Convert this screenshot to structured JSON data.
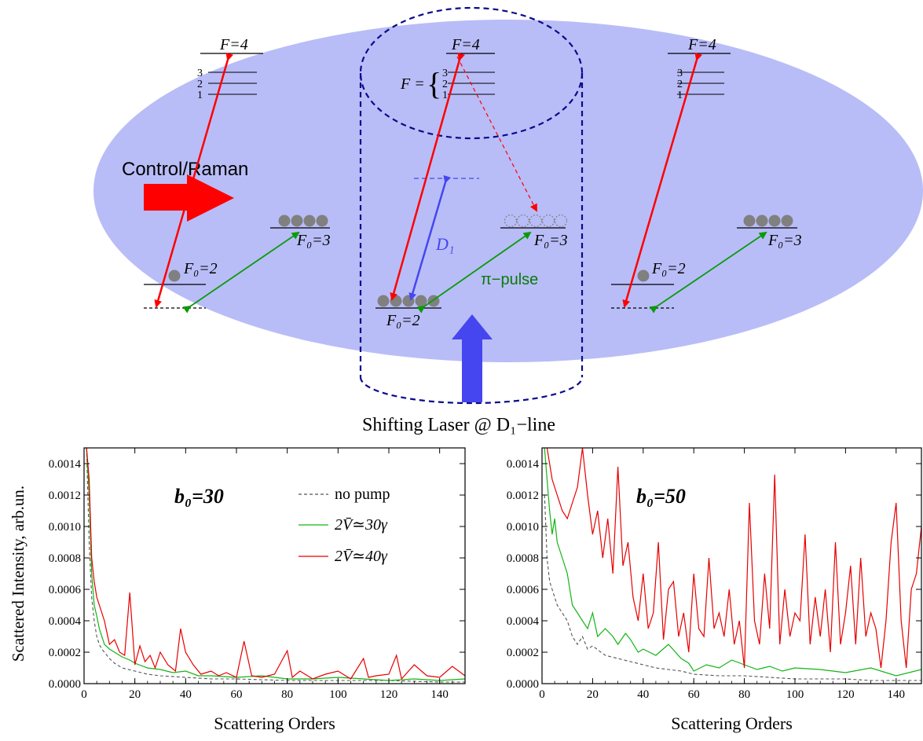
{
  "diagram": {
    "control_label": "Control/Raman",
    "shifting_label": "Shifting Laser @ D₁−line",
    "d1_label": "D₁",
    "pi_pulse_label": "π−pulse",
    "f_brace_label": "F =",
    "level_F4": "F=4",
    "level_F0_2": "F₀=2",
    "level_F0_3": "F₀=3",
    "sublevel_3": "3",
    "sublevel_2": "2",
    "sublevel_1": "1",
    "colors": {
      "cloud": "#b8bdf7",
      "control": "#ff0000",
      "green": "#0a9a0a",
      "shift": "#4646f0",
      "cylinder": "#0a0a8c"
    }
  },
  "chart_data": [
    {
      "type": "line",
      "annotation": "b₀=30",
      "xlabel": "Scattering Orders",
      "ylabel": "Scattered Intensity, arb.un.",
      "xlim": [
        0,
        150
      ],
      "ylim": [
        0,
        0.0015
      ],
      "x_ticks": [
        "0",
        "20",
        "40",
        "60",
        "80",
        "100",
        "120",
        "140"
      ],
      "y_ticks": [
        "0.0000",
        "0.0002",
        "0.0004",
        "0.0006",
        "0.0008",
        "0.0010",
        "0.0012",
        "0.0014"
      ],
      "legend_position": "top-right",
      "series": [
        {
          "name": "no pump",
          "color": "#555555",
          "dashed": true,
          "x": [
            1,
            2,
            3,
            4,
            5,
            6,
            7,
            8,
            10,
            12,
            15,
            20,
            25,
            30,
            40,
            50,
            60,
            80,
            100,
            120,
            140,
            150
          ],
          "y": [
            0.0015,
            0.0009,
            0.00055,
            0.0004,
            0.0003,
            0.00025,
            0.00022,
            0.0002,
            0.00016,
            0.00013,
            0.0001,
            8e-05,
            6e-05,
            5e-05,
            4e-05,
            3e-05,
            3e-05,
            2e-05,
            2e-05,
            2e-05,
            1e-05,
            1e-05
          ]
        },
        {
          "name": "2V̄≃30γ",
          "color": "#14b414",
          "dashed": false,
          "x": [
            1,
            2,
            3,
            4,
            5,
            6,
            8,
            10,
            12,
            15,
            18,
            20,
            25,
            30,
            35,
            40,
            45,
            50,
            60,
            70,
            80,
            90,
            100,
            110,
            120,
            130,
            140,
            150
          ],
          "y": [
            0.0015,
            0.0012,
            0.0007,
            0.0005,
            0.00043,
            0.00035,
            0.00025,
            0.00022,
            0.0002,
            0.00017,
            0.00015,
            0.00013,
            0.0001,
            9e-05,
            7e-05,
            8e-05,
            5e-05,
            5e-05,
            4e-05,
            5e-05,
            3e-05,
            3e-05,
            4e-05,
            3e-05,
            2e-05,
            3e-05,
            2e-05,
            3e-05
          ]
        },
        {
          "name": "2V̄≃40γ",
          "color": "#e60000",
          "dashed": false,
          "x": [
            1,
            2,
            3,
            4,
            5,
            6,
            8,
            10,
            12,
            14,
            16,
            18,
            20,
            22,
            24,
            26,
            28,
            30,
            33,
            36,
            38,
            40,
            43,
            46,
            50,
            53,
            56,
            60,
            63,
            66,
            70,
            75,
            80,
            82,
            85,
            90,
            95,
            100,
            105,
            110,
            112,
            115,
            120,
            123,
            125,
            130,
            135,
            140,
            145,
            150
          ],
          "y": [
            0.0015,
            0.0013,
            0.0008,
            0.00065,
            0.00055,
            0.0005,
            0.0004,
            0.00025,
            0.00028,
            0.0002,
            0.00018,
            0.00058,
            0.00012,
            0.00024,
            0.00014,
            0.00018,
            0.0001,
            0.0002,
            0.00012,
            8e-05,
            0.00035,
            0.0002,
            0.00012,
            6e-05,
            8e-05,
            5e-05,
            7e-05,
            4e-05,
            0.00027,
            5e-05,
            4e-05,
            6e-05,
            0.00021,
            4e-05,
            8e-05,
            3e-05,
            6e-05,
            8e-05,
            3e-05,
            0.00016,
            4e-05,
            5e-05,
            6e-05,
            0.00018,
            3e-05,
            0.00012,
            5e-05,
            4e-05,
            0.00011,
            5e-05
          ]
        }
      ]
    },
    {
      "type": "line",
      "annotation": "b₀=50",
      "xlabel": "Scattering Orders",
      "ylabel": "",
      "xlim": [
        0,
        150
      ],
      "ylim": [
        0,
        0.0015
      ],
      "x_ticks": [
        "0",
        "20",
        "40",
        "60",
        "80",
        "100",
        "120",
        "140"
      ],
      "y_ticks": [
        "0.0000",
        "0.0002",
        "0.0004",
        "0.0006",
        "0.0008",
        "0.0010",
        "0.0012",
        "0.0014"
      ],
      "series": [
        {
          "name": "no pump",
          "color": "#555555",
          "dashed": true,
          "x": [
            1,
            2,
            3,
            4,
            5,
            6,
            8,
            10,
            12,
            14,
            16,
            18,
            20,
            25,
            30,
            35,
            40,
            45,
            50,
            55,
            60,
            70,
            80,
            90,
            100,
            110,
            120,
            130,
            140,
            150
          ],
          "y": [
            0.0012,
            0.0008,
            0.00065,
            0.0006,
            0.00055,
            0.0005,
            0.00045,
            0.0004,
            0.0003,
            0.00025,
            0.0003,
            0.00022,
            0.00024,
            0.00018,
            0.00016,
            0.00014,
            0.00012,
            0.0001,
            9e-05,
            8e-05,
            6e-05,
            5e-05,
            5e-05,
            4e-05,
            3e-05,
            3e-05,
            3e-05,
            2e-05,
            2e-05,
            2e-05
          ]
        },
        {
          "name": "2V̄≃30γ",
          "color": "#14b414",
          "dashed": false,
          "x": [
            1,
            2,
            3,
            4,
            5,
            6,
            8,
            10,
            12,
            14,
            16,
            18,
            20,
            22,
            25,
            28,
            30,
            33,
            35,
            38,
            40,
            45,
            50,
            55,
            58,
            60,
            65,
            70,
            75,
            80,
            85,
            90,
            95,
            100,
            110,
            120,
            130,
            140,
            150
          ],
          "y": [
            0.0015,
            0.0013,
            0.0011,
            0.00095,
            0.00105,
            0.0009,
            0.0008,
            0.0007,
            0.0005,
            0.00045,
            0.0004,
            0.00035,
            0.00045,
            0.0003,
            0.00035,
            0.0003,
            0.00025,
            0.00032,
            0.00028,
            0.0002,
            0.00022,
            0.00018,
            0.00025,
            0.00016,
            0.00013,
            8e-05,
            0.00012,
            0.0001,
            0.00015,
            0.00012,
            9e-05,
            0.00011,
            8e-05,
            0.0001,
            9e-05,
            7e-05,
            0.0001,
            5e-05,
            9e-05
          ]
        },
        {
          "name": "2V̄≃40γ",
          "color": "#e60000",
          "dashed": false,
          "x": [
            2,
            4,
            6,
            8,
            10,
            12,
            14,
            16,
            18,
            20,
            22,
            24,
            26,
            28,
            30,
            32,
            34,
            36,
            38,
            40,
            42,
            44,
            46,
            48,
            50,
            52,
            54,
            56,
            58,
            60,
            62,
            64,
            66,
            68,
            70,
            72,
            74,
            76,
            78,
            80,
            82,
            84,
            86,
            88,
            90,
            92,
            94,
            96,
            98,
            100,
            102,
            104,
            106,
            108,
            110,
            112,
            114,
            116,
            118,
            120,
            122,
            124,
            126,
            128,
            130,
            132,
            134,
            136,
            138,
            140,
            142,
            144,
            146,
            148,
            150
          ],
          "y": [
            0.0015,
            0.0013,
            0.0012,
            0.0011,
            0.00105,
            0.00115,
            0.00125,
            0.0015,
            0.0012,
            0.00095,
            0.0011,
            0.0008,
            0.00105,
            0.0007,
            0.00138,
            0.00075,
            0.0009,
            0.00055,
            0.0004,
            0.0007,
            0.00035,
            0.00045,
            0.0009,
            0.00028,
            0.0006,
            0.00065,
            0.0003,
            0.00045,
            0.0002,
            0.0007,
            0.00035,
            0.0003,
            0.0008,
            0.00035,
            0.00045,
            0.0003,
            0.0006,
            0.00025,
            0.0004,
            0.0001,
            0.00115,
            0.0004,
            0.00025,
            0.0007,
            0.00035,
            0.00133,
            0.00025,
            0.0006,
            0.0003,
            0.00045,
            0.0004,
            0.00095,
            0.00025,
            0.00055,
            0.0003,
            0.0006,
            0.0002,
            0.0009,
            0.00025,
            0.00045,
            0.00075,
            0.00025,
            0.0008,
            0.0003,
            0.00045,
            0.00035,
            0.0001,
            0.0004,
            0.0009,
            0.00115,
            0.0004,
            0.0001,
            0.0006,
            0.0007,
            0.001
          ]
        }
      ]
    }
  ]
}
